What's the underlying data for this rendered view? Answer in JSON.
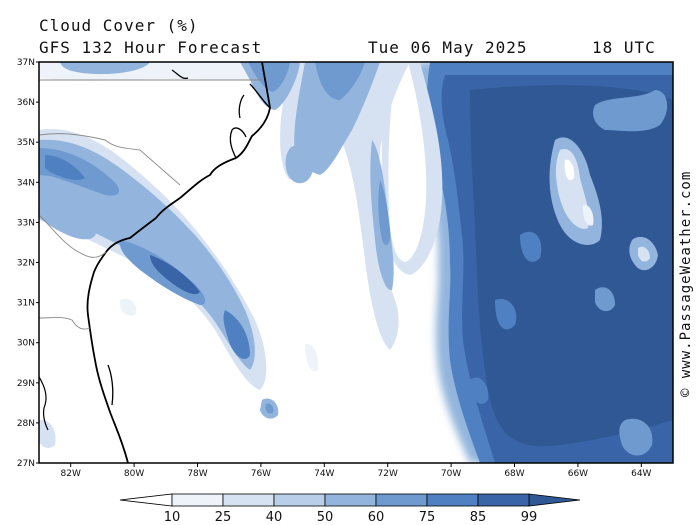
{
  "title": {
    "line1": "Cloud Cover (%)",
    "line2": "GFS 132 Hour Forecast",
    "date": "Tue 06 May 2025",
    "time": "18 UTC"
  },
  "credit": "© www.PassageWeather.com",
  "map": {
    "lon_labels": [
      "82W",
      "80W",
      "78W",
      "76W",
      "74W",
      "72W",
      "70W",
      "68W",
      "66W",
      "64W"
    ],
    "lat_labels": [
      "37N",
      "36N",
      "35N",
      "34N",
      "33N",
      "32N",
      "31N",
      "30N",
      "29N",
      "28N",
      "27N"
    ],
    "lon_range": [
      -83,
      -63
    ],
    "lat_range": [
      27,
      37
    ]
  },
  "legend": {
    "levels": [
      "10",
      "25",
      "40",
      "50",
      "60",
      "75",
      "85",
      "99"
    ],
    "colors": [
      "#ffffff",
      "#eef3fa",
      "#d6e2f2",
      "#b9cfe9",
      "#93b5dd",
      "#6e9ad0",
      "#4f80c2",
      "#3965a8",
      "#2f5895"
    ]
  }
}
